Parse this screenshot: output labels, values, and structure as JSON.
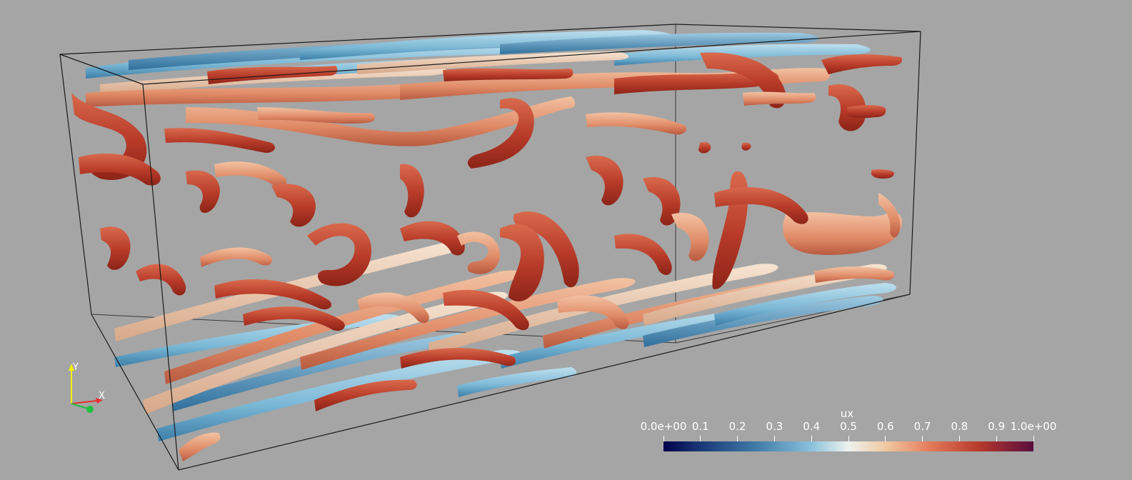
{
  "scene": {
    "description_colormap": "Cool to Warm (Extended)",
    "background_color": "#a5a5a5",
    "box_outline_color": "#1a1a1a"
  },
  "orientation_axes": {
    "y_label": "Y",
    "x_label": "X",
    "y_color": "#f2f200",
    "x_color": "#e63232",
    "z_color": "#1fbf3f"
  },
  "scalar_bar": {
    "title": "ux",
    "tick_labels": [
      "0.0e+00",
      "0.1",
      "0.2",
      "0.3",
      "0.4",
      "0.5",
      "0.6",
      "0.7",
      "0.8",
      "0.9",
      "1.0e+00"
    ],
    "range": [
      0,
      1
    ],
    "colormap_stops": [
      {
        "pos": 0.0,
        "color": "#00004c"
      },
      {
        "pos": 0.1,
        "color": "#1a3877"
      },
      {
        "pos": 0.25,
        "color": "#3f7ba8"
      },
      {
        "pos": 0.4,
        "color": "#8ac2dc"
      },
      {
        "pos": 0.5,
        "color": "#eef2ee"
      },
      {
        "pos": 0.6,
        "color": "#f0c9a2"
      },
      {
        "pos": 0.72,
        "color": "#e47b5a"
      },
      {
        "pos": 0.85,
        "color": "#b83a2c"
      },
      {
        "pos": 1.0,
        "color": "#5a0d3d"
      }
    ]
  }
}
